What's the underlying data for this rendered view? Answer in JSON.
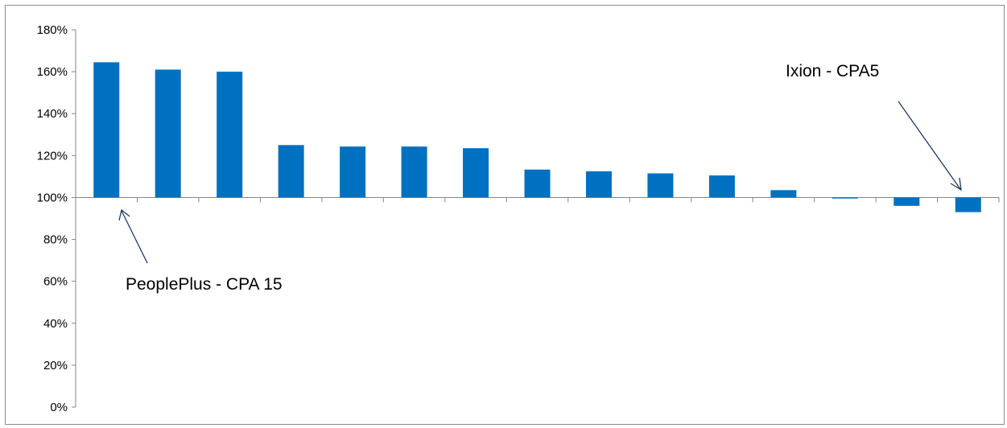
{
  "chart_data": {
    "type": "bar",
    "categories": [
      "",
      "",
      "",
      "",
      "",
      "",
      "",
      "",
      "",
      "",
      "",
      "",
      "",
      "",
      ""
    ],
    "series": [
      {
        "values": [
          1.645,
          1.61,
          1.6,
          1.25,
          1.243,
          1.243,
          1.235,
          1.133,
          1.125,
          1.115,
          1.105,
          1.035,
          0.995,
          0.96,
          0.93
        ]
      }
    ],
    "baseline": 1.0,
    "ylim": [
      0,
      1.8
    ],
    "y_ticks": [
      0,
      0.2,
      0.4,
      0.6,
      0.8,
      1.0,
      1.2,
      1.4,
      1.6,
      1.8
    ],
    "y_tick_labels": [
      "0%",
      "20%",
      "40%",
      "60%",
      "80%",
      "100%",
      "120%",
      "140%",
      "160%",
      "180%"
    ],
    "title": "",
    "xlabel": "",
    "ylabel": "",
    "grid": false,
    "bar_color": "#0070c0",
    "annotations": [
      {
        "text": "PeoplePlus - CPA 15",
        "category_index": 0
      },
      {
        "text": "Ixion - CPA5",
        "category_index": 14
      }
    ]
  }
}
